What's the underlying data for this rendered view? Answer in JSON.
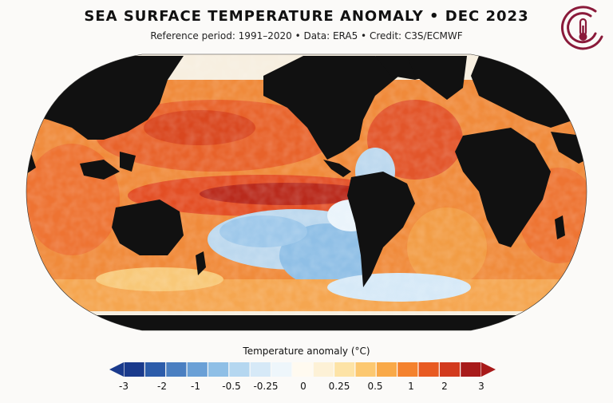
{
  "header": {
    "title": "SEA SURFACE TEMPERATURE ANOMALY • DEC 2023",
    "subtitle": "Reference period: 1991–2020 • Data: ERA5 • Credit: C3S/ECMWF"
  },
  "logo": {
    "icon": "thermometer-circle-icon",
    "color": "#8a1a3a"
  },
  "map": {
    "projection": "Robinson",
    "land_color": "#111111",
    "sea_ice_color": "#f6f1e8",
    "features": [
      "El Niño warm anomaly in equatorial Pacific",
      "Cool anomaly in South Pacific",
      "Warm North Atlantic"
    ]
  },
  "legend": {
    "title": "Temperature anomaly (°C)",
    "tick_labels": [
      "-3",
      "-2",
      "-1",
      "-0.5",
      "-0.25",
      "0",
      "0.25",
      "0.5",
      "1",
      "2",
      "3"
    ],
    "colors": [
      "#1a3a8c",
      "#2c5caa",
      "#4a7fc1",
      "#6aa0d6",
      "#8fbfe6",
      "#b5d7f0",
      "#d6e9f7",
      "#eef6fb",
      "#fffaf0",
      "#fdf1d6",
      "#fde3a6",
      "#fcc870",
      "#f9a948",
      "#f4822e",
      "#e85a22",
      "#d23a1e",
      "#a81a1a"
    ]
  }
}
